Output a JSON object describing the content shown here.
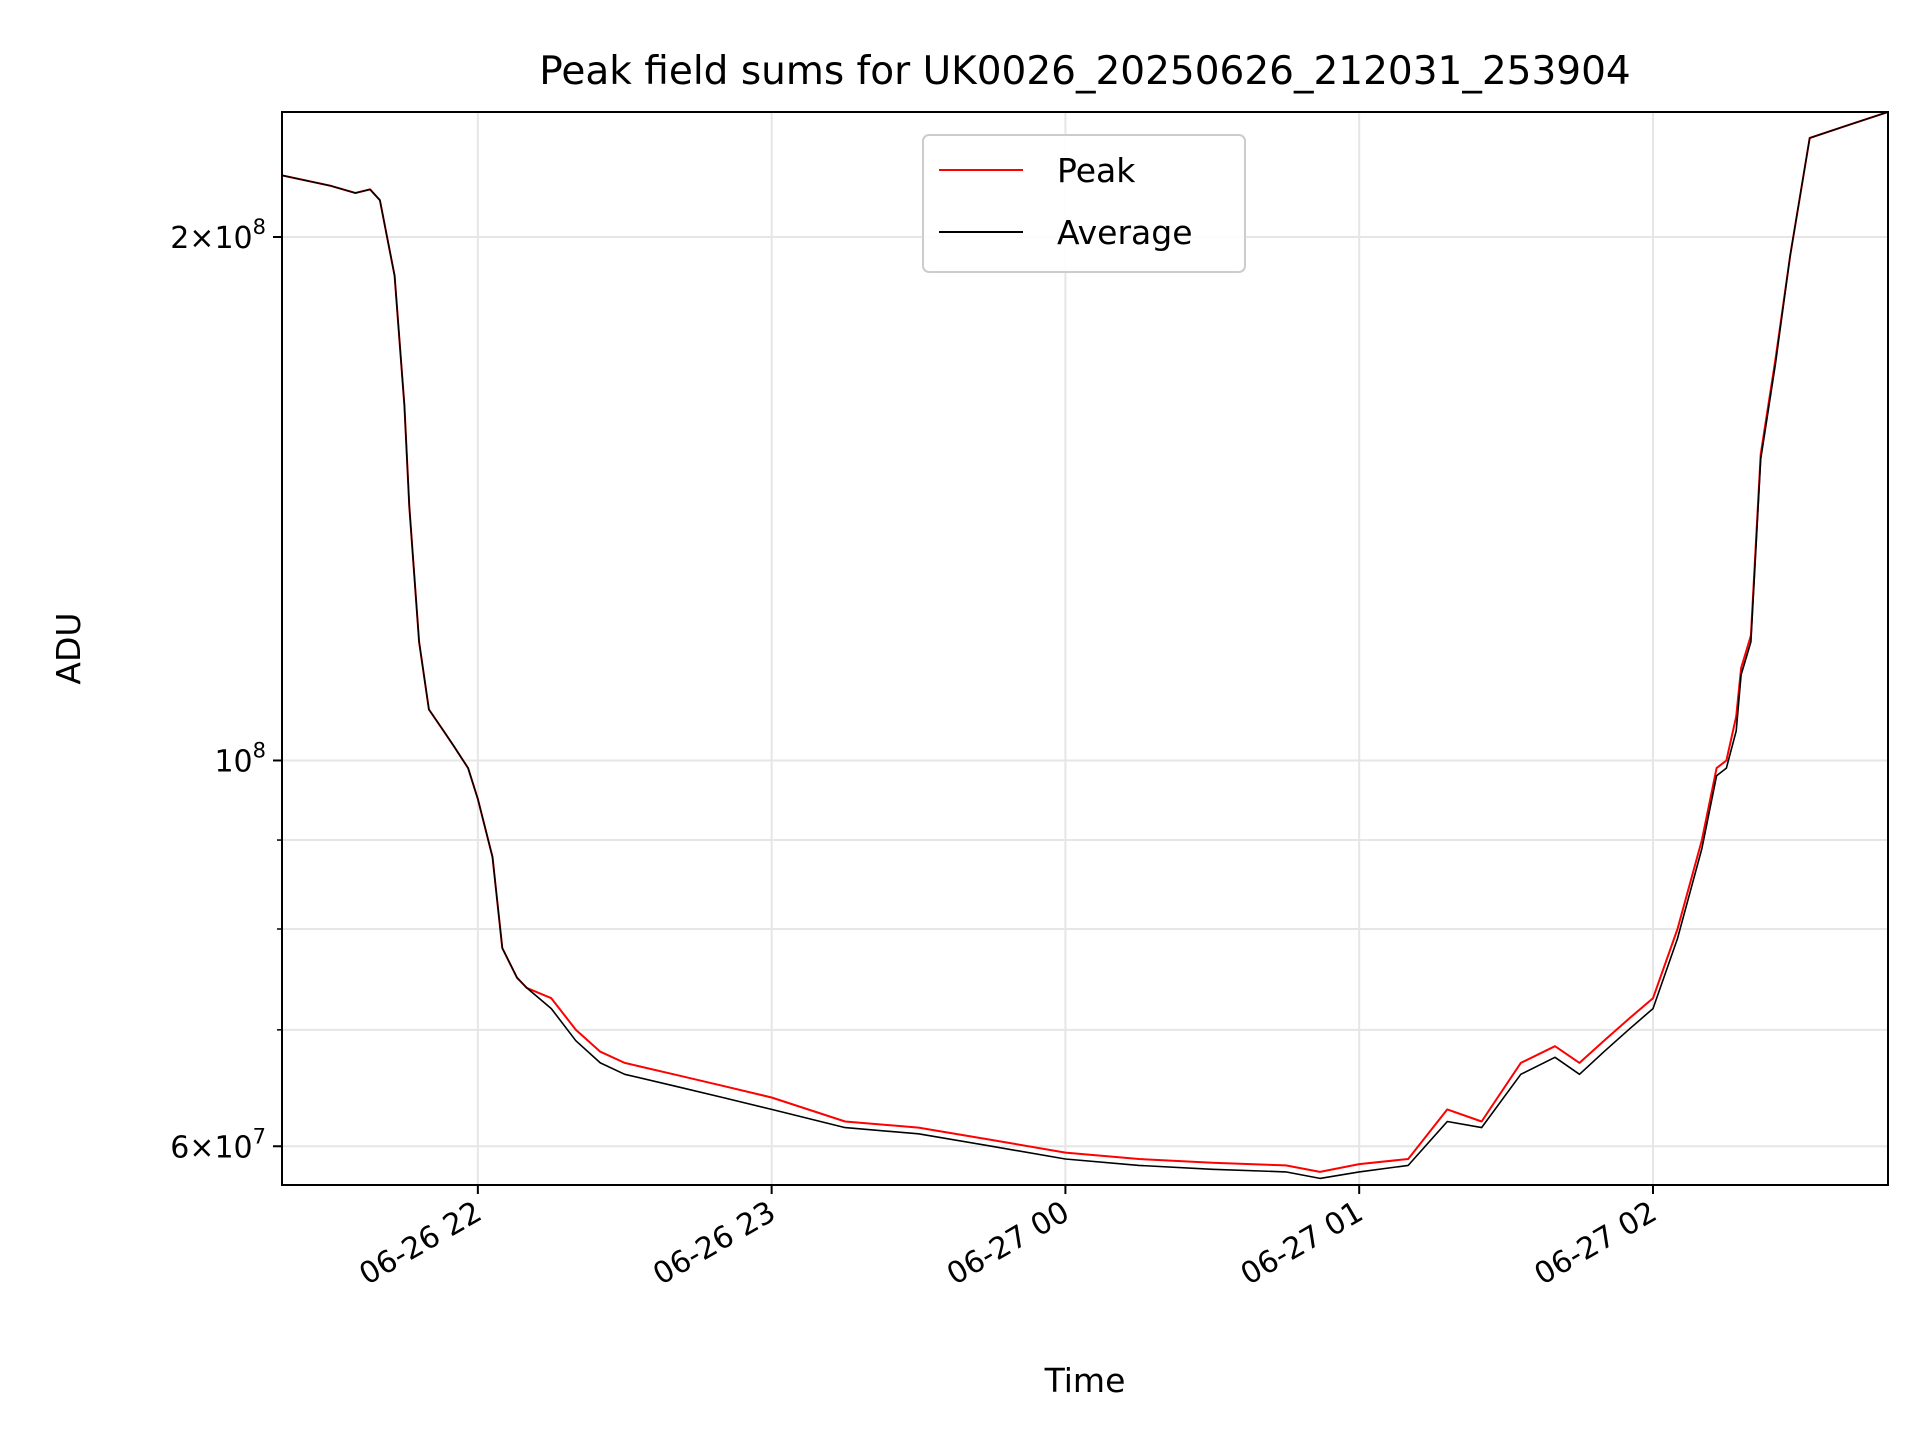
{
  "chart_data": {
    "type": "line",
    "title": "Peak field sums for UK0026_20250626_212031_253904",
    "xlabel": "Time",
    "ylabel": "ADU",
    "yscale": "log",
    "xlim": [
      "2025-06-26 21:20",
      "2025-06-27 02:48"
    ],
    "ylim": [
      57000000,
      236000000
    ],
    "grid": true,
    "legend_position": "upper center",
    "x_ticks": [
      {
        "label": "06-26 22",
        "value": "2025-06-26 22:00"
      },
      {
        "label": "06-26 23",
        "value": "2025-06-26 23:00"
      },
      {
        "label": "06-27 00",
        "value": "2025-06-27 00:00"
      },
      {
        "label": "06-27 01",
        "value": "2025-06-27 01:00"
      },
      {
        "label": "06-27 02",
        "value": "2025-06-27 02:00"
      }
    ],
    "y_ticks": [
      {
        "value": 60000000,
        "base": "6",
        "exp": "7"
      },
      {
        "value": 100000000,
        "base": "",
        "exp": "8"
      },
      {
        "value": 200000000,
        "base": "2",
        "exp": "8"
      }
    ],
    "x": [
      "21:20",
      "21:30",
      "21:35",
      "21:38",
      "21:40",
      "21:43",
      "21:45",
      "21:46",
      "21:48",
      "21:50",
      "21:53",
      "21:55",
      "21:58",
      "22:00",
      "22:03",
      "22:05",
      "22:08",
      "22:10",
      "22:15",
      "22:20",
      "22:25",
      "22:30",
      "22:40",
      "22:50",
      "23:00",
      "23:15",
      "23:30",
      "23:45",
      "00:00",
      "00:15",
      "00:30",
      "00:45",
      "00:52",
      "01:00",
      "01:10",
      "01:18",
      "01:25",
      "01:33",
      "01:40",
      "01:45",
      "01:50",
      "01:55",
      "02:00",
      "02:05",
      "02:10",
      "02:13",
      "02:15",
      "02:17",
      "02:18",
      "02:20",
      "02:22",
      "02:25",
      "02:28",
      "02:32",
      "02:40",
      "02:48"
    ],
    "series": [
      {
        "name": "Peak",
        "color": "#ff0000",
        "values": [
          217000000,
          214000000,
          212000000,
          213000000,
          210000000,
          190000000,
          160000000,
          140000000,
          117000000,
          107000000,
          104000000,
          102000000,
          99000000,
          95000000,
          88000000,
          78000000,
          75000000,
          74000000,
          73000000,
          70000000,
          68000000,
          67000000,
          66000000,
          65000000,
          64000000,
          62000000,
          61500000,
          60500000,
          59500000,
          59000000,
          58700000,
          58500000,
          58000000,
          58600000,
          59000000,
          63000000,
          62000000,
          67000000,
          68500000,
          67000000,
          69000000,
          71000000,
          73000000,
          80000000,
          90000000,
          99000000,
          100000000,
          106000000,
          113000000,
          118000000,
          150000000,
          170000000,
          195000000,
          228000000,
          232000000,
          236000000
        ]
      },
      {
        "name": "Average",
        "color": "#000000",
        "values": [
          217000000,
          214000000,
          212000000,
          213000000,
          210000000,
          190000000,
          160000000,
          140000000,
          117000000,
          107000000,
          104000000,
          102000000,
          99000000,
          95000000,
          88000000,
          78000000,
          75000000,
          74000000,
          72000000,
          69000000,
          67000000,
          66000000,
          65000000,
          64000000,
          63000000,
          61500000,
          61000000,
          60000000,
          59000000,
          58500000,
          58200000,
          58000000,
          57500000,
          58000000,
          58500000,
          62000000,
          61500000,
          66000000,
          67500000,
          66000000,
          68000000,
          70000000,
          72000000,
          79000000,
          89000000,
          98000000,
          99000000,
          104000000,
          112000000,
          117000000,
          149000000,
          169000000,
          195000000,
          228000000,
          232000000,
          236000000
        ]
      }
    ]
  }
}
